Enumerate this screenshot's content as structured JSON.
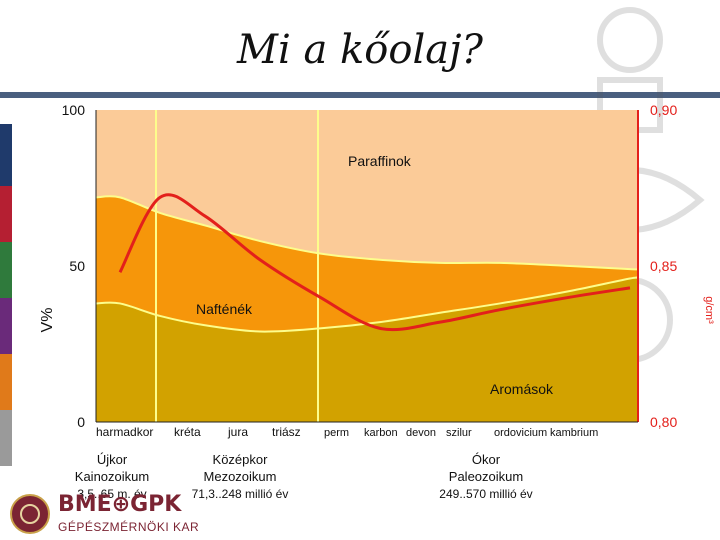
{
  "slide": {
    "title": "Mi a kőolaj?"
  },
  "colors": {
    "paraffin_band": "#fbcb98",
    "naphthene_band": "#f6960a",
    "aromatic_band": "#d2a200",
    "density_curve": "#e3201b",
    "separator_line": "#fdfd8c",
    "right_axis": "#e3201b",
    "title_rule": "#4a5f7f",
    "brand": "#7b2433"
  },
  "chart_data": {
    "type": "area",
    "y_label": "V%",
    "y_right_label": "g/cm³",
    "y_ticks": [
      "100",
      "50",
      "0"
    ],
    "y_right_ticks": [
      "0,90",
      "0,85",
      "0,80"
    ],
    "ylim": [
      0,
      100
    ],
    "y_right_lim": [
      0.8,
      0.9
    ],
    "x_ticks": [
      "harmadkor",
      "kréta",
      "jura",
      "triász",
      "perm",
      "karbon",
      "devon",
      "szilur",
      "ordovicium",
      "kambrium"
    ],
    "x": [
      1,
      2,
      3,
      4,
      5,
      6,
      7,
      8,
      9,
      10
    ],
    "eras": [
      {
        "name": "Újkor",
        "sub": "Kainozoikum",
        "range": "3,5..65 m. év"
      },
      {
        "name": "Középkor",
        "sub": "Mezozoikum",
        "range": "71,3..248 millió év"
      },
      {
        "name": "Ókor",
        "sub": "Paleozoikum",
        "range": "249..570 millió év"
      }
    ],
    "series": [
      {
        "name": "Paraffinok",
        "type": "area",
        "values": [
          72,
          67,
          63,
          58,
          54,
          52,
          51,
          51,
          50,
          49
        ]
      },
      {
        "name": "Nafténék",
        "type": "area",
        "values": [
          38,
          34,
          31,
          29,
          30,
          32,
          35,
          38,
          42,
          46
        ]
      },
      {
        "name": "Aromások",
        "type": "area",
        "values": [
          0,
          0,
          0,
          0,
          0,
          0,
          0,
          0,
          0,
          0
        ]
      },
      {
        "name": "",
        "type": "line",
        "axis": "right",
        "values": [
          0.848,
          0.872,
          0.866,
          0.852,
          0.84,
          0.83,
          0.832,
          0.836,
          0.84,
          0.843
        ]
      }
    ],
    "labels": [
      "Paraffinok",
      "Nafténék",
      "Aromások"
    ]
  }
}
